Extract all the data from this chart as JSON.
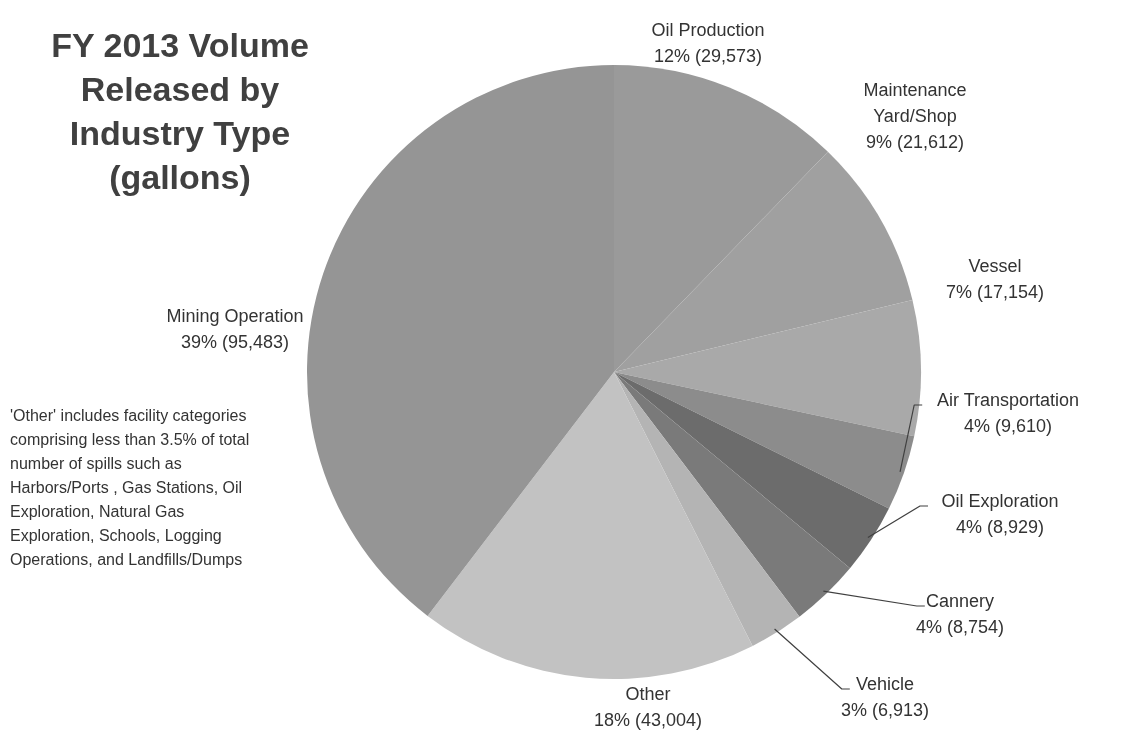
{
  "chart_data": {
    "type": "pie",
    "title": "FY 2013 Volume Released by Industry Type (gallons)",
    "categories": [
      "Oil Production",
      "Maintenance Yard/Shop",
      "Vessel",
      "Air Transportation",
      "Oil Exploration",
      "Cannery",
      "Vehicle",
      "Other",
      "Mining Operation"
    ],
    "values": [
      29573,
      21612,
      17154,
      9610,
      8929,
      8754,
      6913,
      43004,
      95483
    ],
    "colors": [
      "#9a9a9a",
      "#a0a0a0",
      "#a9a9a9",
      "#8c8c8c",
      "#6c6c6c",
      "#7a7a7a",
      "#b4b4b4",
      "#c2c2c2",
      "#959595"
    ],
    "value_labels": [
      "12% (29,573)",
      "9% (21,612)",
      "7% (17,154)",
      "4% (9,610)",
      "4% (8,929)",
      "4% (8,754)",
      "3% (6,913)",
      "18% (43,004)",
      "39% (95,483)"
    ],
    "annotations": [
      "'Other' includes facility categories comprising less than 3.5% of total number of spills such as Harbors/Ports , Gas Stations, Oil Exploration, Natural Gas Exploration, Schools, Logging Operations, and Landfills/Dumps"
    ]
  }
}
